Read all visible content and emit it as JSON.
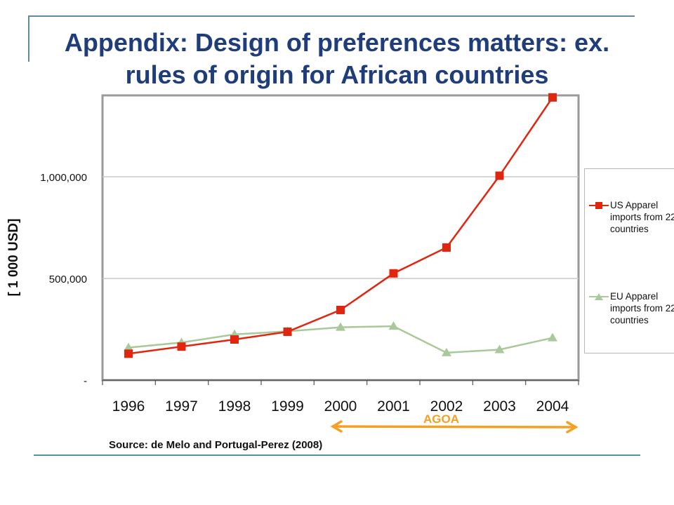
{
  "slide": {
    "title": "Appendix: Design of preferences matters: ex. rules of origin for African countries",
    "source": "Source: de Melo and Portugal-Perez (2008)",
    "annotation": "AGOA"
  },
  "colors": {
    "us": "#e0260f",
    "eu": "#a9c99a",
    "title": "#1f3d7a",
    "arrow": "#f5a023",
    "grid": "#c8c8c8",
    "accent_line": "#5e8a9e"
  },
  "chart_data": {
    "type": "line",
    "ylabel": "[ 1 000 USD]",
    "x": [
      "1996",
      "1997",
      "1998",
      "1999",
      "2000",
      "2001",
      "2002",
      "2003",
      "2004"
    ],
    "series": [
      {
        "name": "US Apparel imports from 22 countries",
        "values": [
          130000,
          165000,
          200000,
          238000,
          345000,
          525000,
          652000,
          1005000,
          1390000
        ]
      },
      {
        "name": "EU Apparel imports from 22 countries",
        "values": [
          160000,
          185000,
          225000,
          240000,
          260000,
          265000,
          135000,
          150000,
          208000
        ]
      }
    ],
    "yticks": [
      {
        "value": 0,
        "label": "-"
      },
      {
        "value": 500000,
        "label": "500,000"
      },
      {
        "value": 1000000,
        "label": "1,000,000"
      }
    ],
    "ylim": [
      0,
      1400000
    ],
    "grid": true,
    "legend": "right",
    "annotation": {
      "text": "AGOA",
      "from": "2000",
      "to": "2004"
    }
  }
}
